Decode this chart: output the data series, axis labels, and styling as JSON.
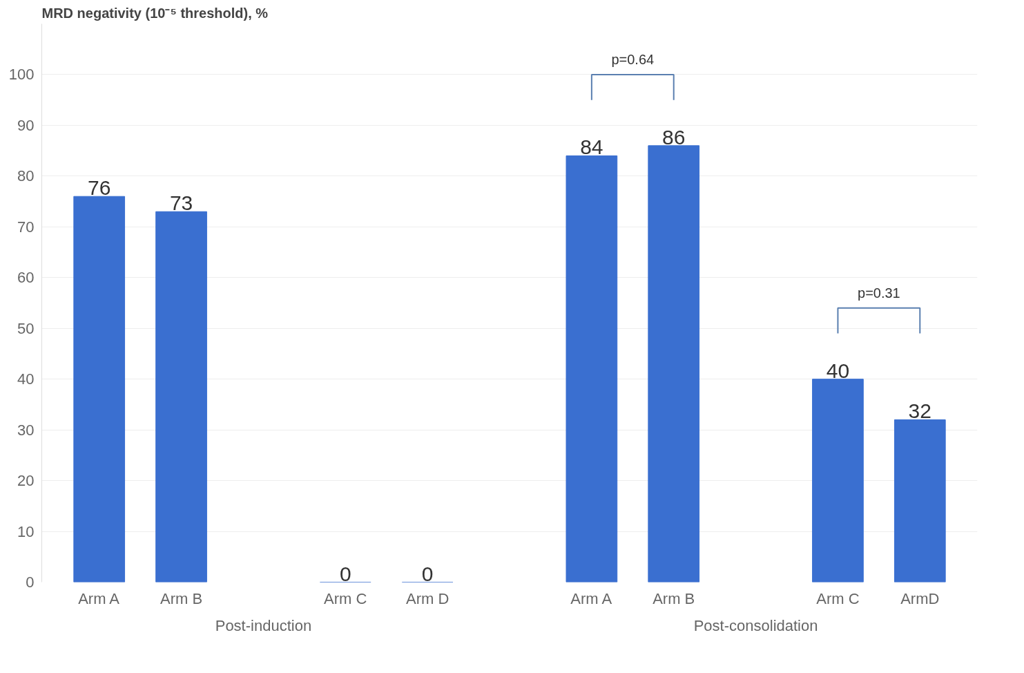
{
  "chart_data": {
    "type": "bar",
    "title": "MRD negativity (10⁻⁵ threshold), %",
    "categories": [
      "Arm A",
      "Arm B",
      null,
      "Arm C",
      "Arm D",
      null,
      "Arm A",
      "Arm B",
      null,
      "Arm C",
      "ArmD"
    ],
    "values": [
      76,
      73,
      null,
      0,
      0,
      null,
      84,
      86,
      null,
      40,
      32
    ],
    "color": "#3a6fd0",
    "ylim": [
      0,
      110
    ],
    "yticks": [
      0,
      10,
      20,
      30,
      40,
      50,
      60,
      70,
      80,
      90,
      100
    ],
    "grid": "y",
    "data_labels": true,
    "annotations": [
      "Post-induction",
      "Post-consolidation",
      "p=0.64",
      "p=0.31"
    ]
  }
}
